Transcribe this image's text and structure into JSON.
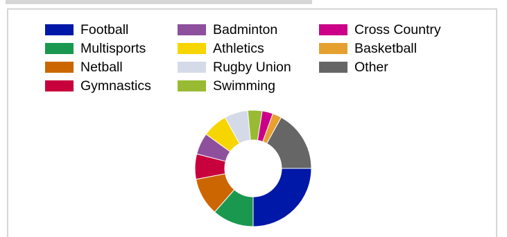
{
  "chart_data": {
    "type": "pie",
    "style": "donut",
    "legend_position": "top",
    "slices": [
      {
        "label": "Football",
        "value": 25.0,
        "color": "#0018a8"
      },
      {
        "label": "Multisports",
        "value": 11.5,
        "color": "#1a9850"
      },
      {
        "label": "Netball",
        "value": 10.5,
        "color": "#cc6600"
      },
      {
        "label": "Gymnastics",
        "value": 7.0,
        "color": "#c8003c"
      },
      {
        "label": "Badminton",
        "value": 6.0,
        "color": "#8e4f9d"
      },
      {
        "label": "Athletics",
        "value": 7.0,
        "color": "#f7d500"
      },
      {
        "label": "Rugby Union",
        "value": 6.5,
        "color": "#d4dae8"
      },
      {
        "label": "Swimming",
        "value": 4.0,
        "color": "#99bb33"
      },
      {
        "label": "Cross Country",
        "value": 3.0,
        "color": "#cc0088"
      },
      {
        "label": "Basketball",
        "value": 2.5,
        "color": "#e6a030"
      },
      {
        "label": "Other",
        "value": 17.0,
        "color": "#666666"
      }
    ]
  }
}
